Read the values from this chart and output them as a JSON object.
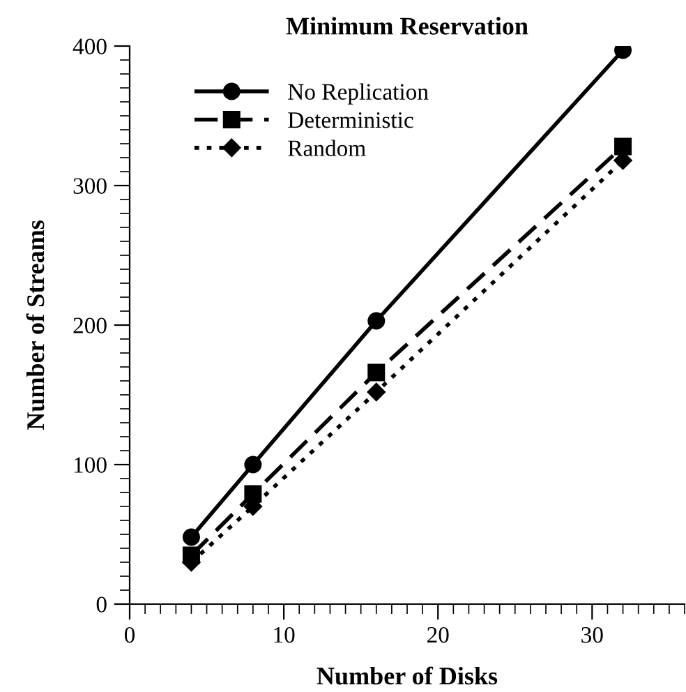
{
  "chart_data": {
    "type": "line",
    "title": "Minimum Reservation",
    "xlabel": "Number of Disks",
    "ylabel": "Number of Streams",
    "x": [
      4,
      8,
      16,
      32
    ],
    "series": [
      {
        "name": "No Replication",
        "color": "#000000",
        "values": [
          48,
          100,
          203,
          397
        ],
        "marker": "circle",
        "line_style": "solid"
      },
      {
        "name": "Deterministic",
        "color": "#000000",
        "values": [
          35,
          79,
          166,
          328
        ],
        "marker": "square",
        "line_style": "dashed"
      },
      {
        "name": "Random",
        "color": "#000000",
        "values": [
          30,
          70,
          152,
          318
        ],
        "marker": "diamond",
        "line_style": "dotted"
      }
    ],
    "xlim": [
      0,
      36
    ],
    "xticks": [
      0,
      10,
      20,
      30
    ],
    "ylim": [
      0,
      400
    ],
    "yticks": [
      0,
      100,
      200,
      300,
      400
    ],
    "grid": false,
    "legend": "top left"
  }
}
